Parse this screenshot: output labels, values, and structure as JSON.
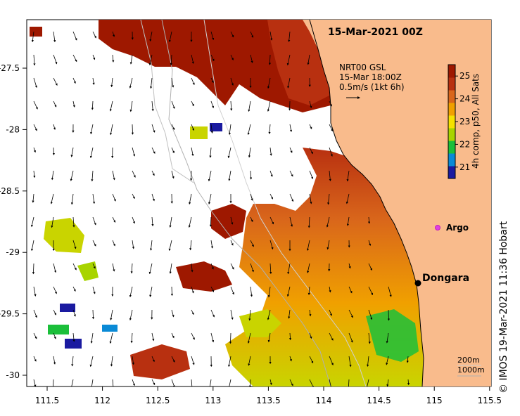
{
  "title": "15-Mar-2021 00Z",
  "current_legend": {
    "line1": "NRT00 GSL",
    "line2": "15-Mar 18:00Z",
    "line3": "0.5m/s (1kt 6h)"
  },
  "colorbar": {
    "label": "4h comp, p50, All Sats",
    "ticks": [
      21,
      22,
      23,
      24,
      25
    ],
    "min": 20.5,
    "max": 25.5,
    "colors": [
      "#1a1aa0",
      "#0a8ad6",
      "#1bbf3a",
      "#a8d400",
      "#f5e100",
      "#f0a000",
      "#d9661b",
      "#b83010",
      "#9e1800"
    ]
  },
  "axes": {
    "lon_ticks": [
      "111.5",
      "112",
      "112.5",
      "113",
      "113.5",
      "114",
      "114.5",
      "115",
      "115.5"
    ],
    "lat_ticks": [
      "-27.5",
      "-28",
      "-28.5",
      "-29",
      "-29.5",
      "-30"
    ]
  },
  "places": {
    "dongara": "Dongara",
    "argo": "Argo"
  },
  "isobaths": {
    "line1": "200m",
    "line2": "1000m"
  },
  "credit": "© IMOS 19-Mar-2021 11:36 Hobart",
  "colors": {
    "land": "#f9bb8c",
    "sst_warm": "#b83010",
    "sst_hot": "#9e1800",
    "sst_mid": "#d9661b",
    "sst_cool": "#f0a000",
    "sst_green": "#1bbf3a",
    "sst_blue": "#1a1aa0",
    "argo": "#e040e0"
  }
}
